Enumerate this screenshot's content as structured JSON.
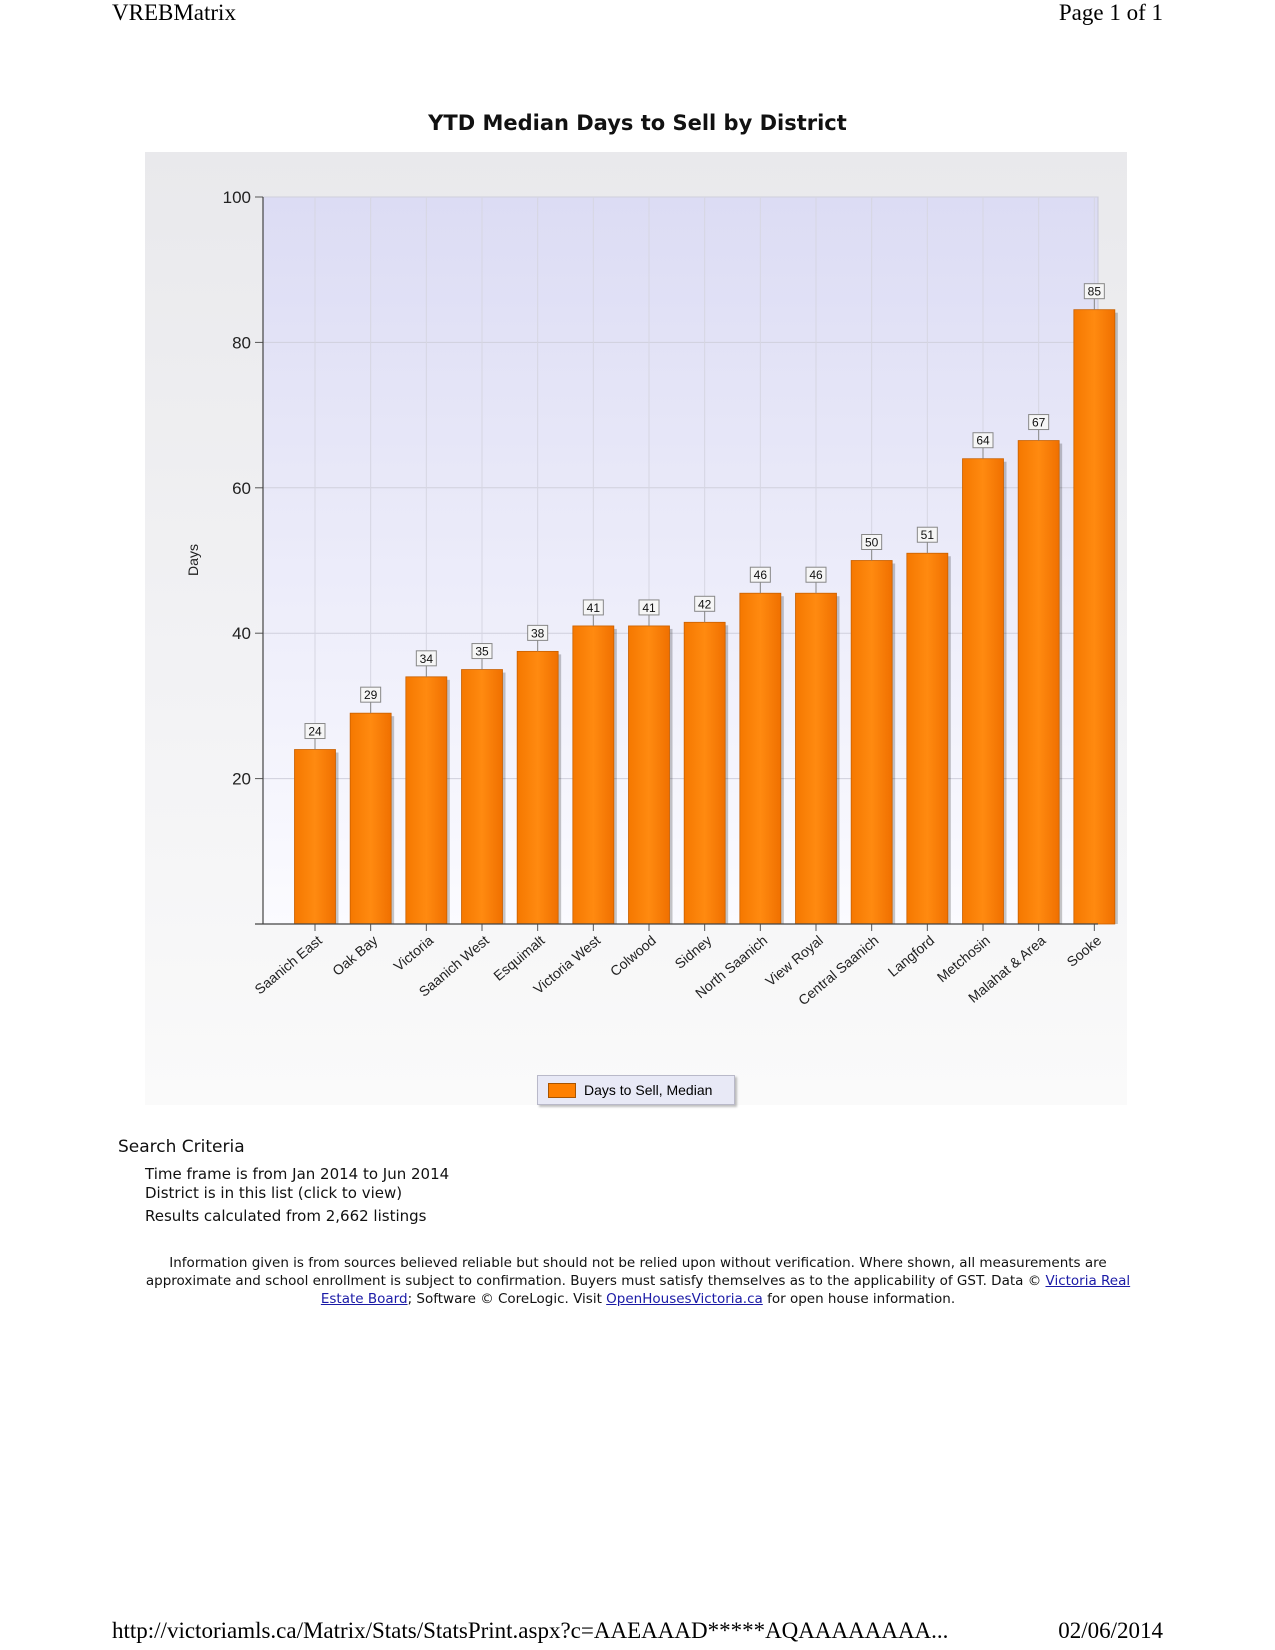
{
  "header": {
    "left": "VREBMatrix",
    "right": "Page 1 of 1"
  },
  "footer": {
    "url": "http://victoriamls.ca/Matrix/Stats/StatsPrint.aspx?c=AAEAAAD*****AQAAAAAAAA...",
    "date": "02/06/2014"
  },
  "chart_data": {
    "type": "bar",
    "title": "YTD Median Days to Sell by District",
    "xlabel": "",
    "ylabel": "Days",
    "ylim": [
      0,
      100
    ],
    "yticks": [
      20,
      40,
      60,
      80,
      100
    ],
    "grid": true,
    "legend_position": "bottom-center",
    "categories": [
      "Saanich East",
      "Oak Bay",
      "Victoria",
      "Saanich West",
      "Esquimalt",
      "Victoria West",
      "Colwood",
      "Sidney",
      "North Saanich",
      "View Royal",
      "Central Saanich",
      "Langford",
      "Metchosin",
      "Malahat & Area",
      "Sooke"
    ],
    "series": [
      {
        "name": "Days to Sell, Median",
        "color": "#ff8000",
        "values": [
          24,
          29,
          34,
          35,
          37.5,
          41,
          41,
          41.5,
          45.5,
          45.5,
          50,
          51,
          64,
          66.5,
          84.5
        ],
        "labels": [
          "24",
          "29",
          "34",
          "35",
          "38",
          "41",
          "41",
          "42",
          "46",
          "46",
          "50",
          "51",
          "64",
          "67",
          "85"
        ]
      }
    ]
  },
  "criteria": {
    "heading": "Search Criteria",
    "timeframe": "Time frame is from Jan 2014 to Jun 2014",
    "district": "District is in this list (click to view)",
    "results": "Results calculated from 2,662 listings"
  },
  "disclaimer": {
    "text1": "Information given is from sources believed reliable but should not be relied upon without verification. Where shown, all measurements are approximate and school enrollment is subject to confirmation. Buyers must satisfy themselves as to the applicability of GST. Data © ",
    "link1": "Victoria Real Estate Board",
    "text2": "; Software © CoreLogic. Visit ",
    "link2": "OpenHousesVictoria.ca",
    "text3": " for open house information."
  }
}
